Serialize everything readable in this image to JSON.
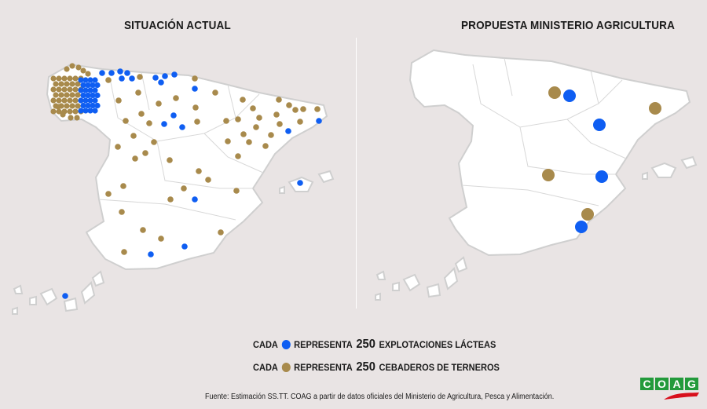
{
  "titles": {
    "left": "SITUACIÓN ACTUAL",
    "right": "PROPUESTA MINISTERIO AGRICULTURA"
  },
  "legend": [
    {
      "prefix": "CADA",
      "middle": "REPRESENTA",
      "number": "250",
      "suffix": "EXPLOTACIONES LÁCTEAS",
      "color": "#0f5ef2",
      "icon": "blue-dot-icon"
    },
    {
      "prefix": "CADA",
      "middle": "REPRESENTA",
      "number": "250",
      "suffix": "CEBADEROS DE TERNEROS",
      "color": "#a88a4c",
      "icon": "gold-dot-icon"
    }
  ],
  "footer": "Fuente: Estimación SS.TT. COAG a partir de datos oficiales del Ministerio de Agricultura, Pesca y Alimentación.",
  "logo": {
    "text": "COAG",
    "letters": [
      "C",
      "O",
      "A",
      "G"
    ]
  },
  "colors": {
    "background": "#e9e4e4",
    "map": "#ffffff",
    "border": "#c9c9c9",
    "dairy": "#0f5ef2",
    "fattening": "#a88a4c"
  }
}
